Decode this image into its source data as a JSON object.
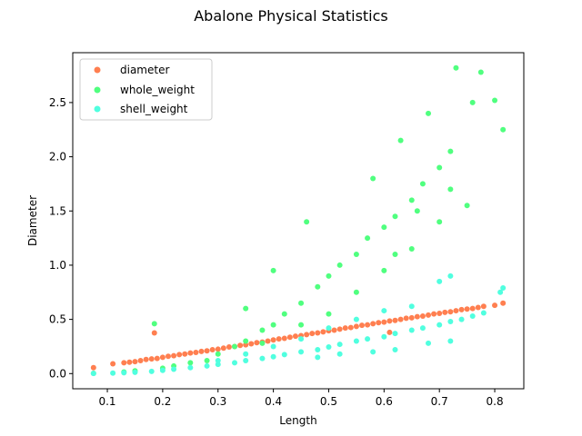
{
  "chart_data": {
    "type": "scatter",
    "title": "Abalone Physical Statistics",
    "xlabel": "Length",
    "ylabel": "Diameter",
    "xlim": [
      0.0375,
      0.8525
    ],
    "ylim": [
      -0.14,
      2.96
    ],
    "x_ticks": [
      0.1,
      0.2,
      0.3,
      0.4,
      0.5,
      0.6,
      0.7,
      0.8
    ],
    "y_ticks": [
      0.0,
      0.5,
      1.0,
      1.5,
      2.0,
      2.5
    ],
    "x_tick_labels": [
      "0.1",
      "0.2",
      "0.3",
      "0.4",
      "0.5",
      "0.6",
      "0.7",
      "0.8"
    ],
    "y_tick_labels": [
      "0.0",
      "0.5",
      "1.0",
      "1.5",
      "2.0",
      "2.5"
    ],
    "legend_position": "upper left",
    "grid": false,
    "series": [
      {
        "name": "diameter",
        "color": "#ff7f50",
        "points": [
          [
            0.075,
            0.055
          ],
          [
            0.11,
            0.09
          ],
          [
            0.13,
            0.1
          ],
          [
            0.14,
            0.105
          ],
          [
            0.15,
            0.11
          ],
          [
            0.16,
            0.12
          ],
          [
            0.17,
            0.13
          ],
          [
            0.18,
            0.135
          ],
          [
            0.185,
            0.375
          ],
          [
            0.19,
            0.14
          ],
          [
            0.2,
            0.15
          ],
          [
            0.21,
            0.16
          ],
          [
            0.22,
            0.165
          ],
          [
            0.23,
            0.175
          ],
          [
            0.24,
            0.18
          ],
          [
            0.25,
            0.19
          ],
          [
            0.26,
            0.195
          ],
          [
            0.27,
            0.205
          ],
          [
            0.28,
            0.21
          ],
          [
            0.29,
            0.22
          ],
          [
            0.3,
            0.225
          ],
          [
            0.31,
            0.235
          ],
          [
            0.32,
            0.245
          ],
          [
            0.33,
            0.25
          ],
          [
            0.34,
            0.26
          ],
          [
            0.35,
            0.265
          ],
          [
            0.36,
            0.275
          ],
          [
            0.37,
            0.285
          ],
          [
            0.38,
            0.29
          ],
          [
            0.39,
            0.3
          ],
          [
            0.4,
            0.31
          ],
          [
            0.41,
            0.32
          ],
          [
            0.42,
            0.325
          ],
          [
            0.43,
            0.335
          ],
          [
            0.44,
            0.345
          ],
          [
            0.45,
            0.35
          ],
          [
            0.46,
            0.36
          ],
          [
            0.47,
            0.37
          ],
          [
            0.48,
            0.375
          ],
          [
            0.49,
            0.385
          ],
          [
            0.5,
            0.395
          ],
          [
            0.51,
            0.4
          ],
          [
            0.52,
            0.41
          ],
          [
            0.53,
            0.42
          ],
          [
            0.54,
            0.425
          ],
          [
            0.55,
            0.435
          ],
          [
            0.56,
            0.445
          ],
          [
            0.57,
            0.45
          ],
          [
            0.58,
            0.46
          ],
          [
            0.59,
            0.47
          ],
          [
            0.6,
            0.475
          ],
          [
            0.61,
            0.485
          ],
          [
            0.62,
            0.49
          ],
          [
            0.63,
            0.5
          ],
          [
            0.64,
            0.51
          ],
          [
            0.65,
            0.515
          ],
          [
            0.66,
            0.525
          ],
          [
            0.67,
            0.53
          ],
          [
            0.68,
            0.54
          ],
          [
            0.69,
            0.55
          ],
          [
            0.7,
            0.555
          ],
          [
            0.71,
            0.565
          ],
          [
            0.72,
            0.57
          ],
          [
            0.73,
            0.58
          ],
          [
            0.74,
            0.59
          ],
          [
            0.75,
            0.595
          ],
          [
            0.76,
            0.6
          ],
          [
            0.77,
            0.61
          ],
          [
            0.78,
            0.62
          ],
          [
            0.8,
            0.63
          ],
          [
            0.815,
            0.65
          ],
          [
            0.61,
            0.38
          ]
        ]
      },
      {
        "name": "whole_weight",
        "color": "#50ff7f",
        "points": [
          [
            0.075,
            0.002
          ],
          [
            0.13,
            0.015
          ],
          [
            0.15,
            0.025
          ],
          [
            0.185,
            0.46
          ],
          [
            0.2,
            0.05
          ],
          [
            0.25,
            0.1
          ],
          [
            0.3,
            0.18
          ],
          [
            0.33,
            0.25
          ],
          [
            0.35,
            0.3
          ],
          [
            0.38,
            0.4
          ],
          [
            0.4,
            0.45
          ],
          [
            0.42,
            0.55
          ],
          [
            0.45,
            0.65
          ],
          [
            0.48,
            0.8
          ],
          [
            0.5,
            0.9
          ],
          [
            0.52,
            1.0
          ],
          [
            0.55,
            1.1
          ],
          [
            0.57,
            1.25
          ],
          [
            0.6,
            1.35
          ],
          [
            0.62,
            1.45
          ],
          [
            0.65,
            1.6
          ],
          [
            0.67,
            1.75
          ],
          [
            0.7,
            1.9
          ],
          [
            0.72,
            2.05
          ],
          [
            0.73,
            2.82
          ],
          [
            0.775,
            2.78
          ],
          [
            0.8,
            2.52
          ],
          [
            0.815,
            2.25
          ],
          [
            0.4,
            0.95
          ],
          [
            0.46,
            1.4
          ],
          [
            0.58,
            1.8
          ],
          [
            0.63,
            2.15
          ],
          [
            0.68,
            2.4
          ],
          [
            0.76,
            2.5
          ],
          [
            0.55,
            0.75
          ],
          [
            0.6,
            0.95
          ],
          [
            0.65,
            1.15
          ],
          [
            0.7,
            1.4
          ],
          [
            0.75,
            1.55
          ],
          [
            0.5,
            0.55
          ],
          [
            0.45,
            0.45
          ],
          [
            0.38,
            0.28
          ],
          [
            0.35,
            0.6
          ],
          [
            0.62,
            1.1
          ],
          [
            0.66,
            1.5
          ],
          [
            0.72,
            1.7
          ],
          [
            0.28,
            0.12
          ],
          [
            0.22,
            0.07
          ]
        ]
      },
      {
        "name": "shell_weight",
        "color": "#50ffdf",
        "points": [
          [
            0.075,
            0.0015
          ],
          [
            0.11,
            0.005
          ],
          [
            0.13,
            0.008
          ],
          [
            0.15,
            0.012
          ],
          [
            0.18,
            0.02
          ],
          [
            0.2,
            0.03
          ],
          [
            0.22,
            0.04
          ],
          [
            0.25,
            0.055
          ],
          [
            0.28,
            0.07
          ],
          [
            0.3,
            0.085
          ],
          [
            0.33,
            0.1
          ],
          [
            0.35,
            0.12
          ],
          [
            0.38,
            0.14
          ],
          [
            0.4,
            0.155
          ],
          [
            0.42,
            0.175
          ],
          [
            0.45,
            0.2
          ],
          [
            0.48,
            0.22
          ],
          [
            0.5,
            0.245
          ],
          [
            0.52,
            0.27
          ],
          [
            0.55,
            0.3
          ],
          [
            0.57,
            0.32
          ],
          [
            0.6,
            0.34
          ],
          [
            0.62,
            0.37
          ],
          [
            0.65,
            0.4
          ],
          [
            0.67,
            0.42
          ],
          [
            0.7,
            0.45
          ],
          [
            0.72,
            0.48
          ],
          [
            0.74,
            0.5
          ],
          [
            0.76,
            0.53
          ],
          [
            0.78,
            0.56
          ],
          [
            0.815,
            0.79
          ],
          [
            0.81,
            0.75
          ],
          [
            0.72,
            0.9
          ],
          [
            0.7,
            0.85
          ],
          [
            0.65,
            0.62
          ],
          [
            0.6,
            0.58
          ],
          [
            0.55,
            0.5
          ],
          [
            0.5,
            0.42
          ],
          [
            0.45,
            0.32
          ],
          [
            0.4,
            0.25
          ],
          [
            0.35,
            0.18
          ],
          [
            0.3,
            0.12
          ],
          [
            0.72,
            0.3
          ],
          [
            0.68,
            0.28
          ],
          [
            0.62,
            0.22
          ],
          [
            0.58,
            0.2
          ],
          [
            0.52,
            0.18
          ],
          [
            0.48,
            0.15
          ]
        ]
      }
    ]
  }
}
